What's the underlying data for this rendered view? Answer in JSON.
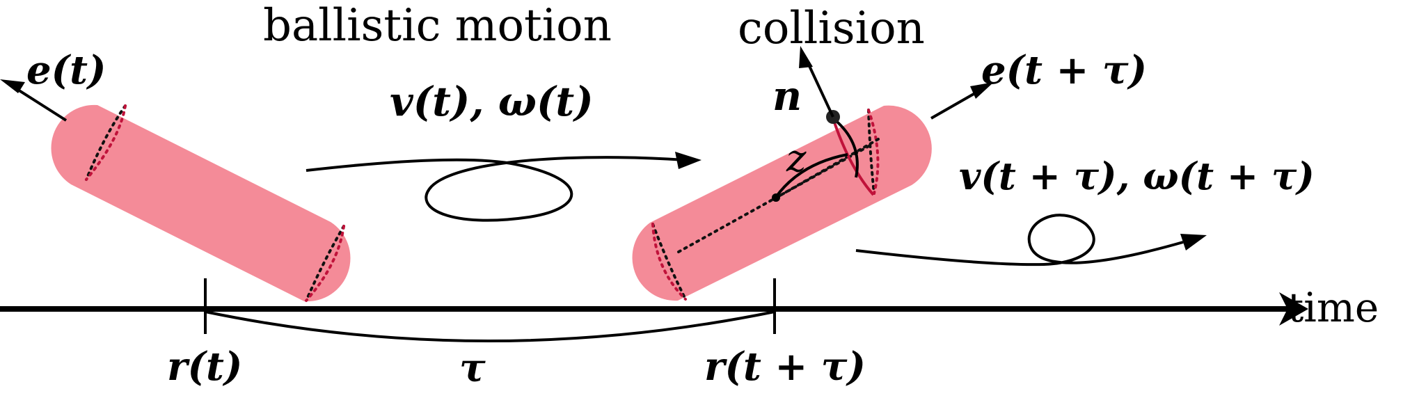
{
  "labels": {
    "ballistic_motion": "ballistic motion",
    "collision": "collision",
    "time": "time",
    "e_t": "e(t)",
    "e_t_tau": "e(t + τ)",
    "v_omega_t": "v(t), ω(t)",
    "v_omega_t_tau": "v(t + τ), ω(t + τ)",
    "n": "n",
    "z": "z",
    "r_t": "r(t)",
    "r_t_tau": "r(t + τ)",
    "tau": "τ"
  },
  "colors": {
    "rod_fill": "#f48b98",
    "collision_outline": "#c0123a",
    "ink": "#000000"
  }
}
